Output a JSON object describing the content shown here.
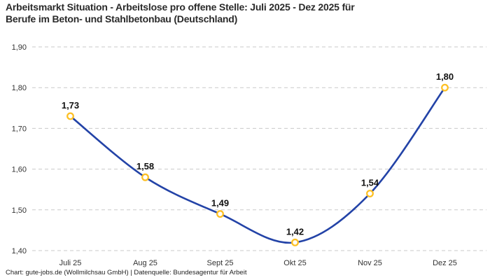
{
  "header": {
    "title": "Arbeitsmarkt Situation - Arbeitslose pro offene Stelle: Juli 2025 - Dez 2025 für\nBerufe im Beton- und Stahlbetonbau (Deutschland)"
  },
  "chart_data": {
    "type": "line",
    "title": "Arbeitsmarkt Situation - Arbeitslose pro offene Stelle: Juli 2025 - Dez 2025 für Berufe im Beton- und Stahlbetonbau (Deutschland)",
    "categories": [
      "Juli 25",
      "Aug 25",
      "Sept 25",
      "Okt 25",
      "Nov 25",
      "Dez 25"
    ],
    "values": [
      1.73,
      1.58,
      1.49,
      1.42,
      1.54,
      1.8
    ],
    "value_labels": [
      "1,73",
      "1,58",
      "1,49",
      "1,42",
      "1,54",
      "1,80"
    ],
    "y_ticks": {
      "values": [
        1.4,
        1.5,
        1.6,
        1.7,
        1.8,
        1.9
      ],
      "labels": [
        "1,40",
        "1,50",
        "1,60",
        "1,70",
        "1,80",
        "1,90"
      ]
    },
    "ylim": [
      1.4,
      1.9
    ],
    "xlabel": "",
    "ylabel": "",
    "grid": "horizontal-dashed",
    "legend": "none",
    "line_color": "#2343a7",
    "marker_stroke_color": "#fdc024",
    "marker_fill_color": "#ffffff",
    "curve": "smooth"
  },
  "footer": {
    "text": "Chart: gute-jobs.de (Wollmilchsau GmbH) | Datenquelle: Bundesagentur für Arbeit"
  }
}
